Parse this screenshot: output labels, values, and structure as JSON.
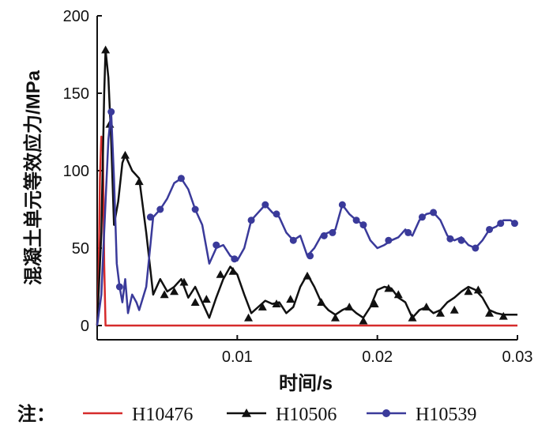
{
  "chart_data": {
    "type": "line",
    "xlabel": "时间/s",
    "ylabel": "混凝土单元等效应力/MPa",
    "xlim": [
      0,
      0.03
    ],
    "ylim": [
      0,
      200
    ],
    "x_ticks": [
      0.01,
      0.02,
      0.03
    ],
    "x_tick_labels": [
      "0.01",
      "0.02",
      "0.03"
    ],
    "y_ticks": [
      0,
      50,
      100,
      150,
      200
    ],
    "y_tick_labels": [
      "0",
      "50",
      "100",
      "150",
      "200"
    ],
    "grid": false,
    "legend_placement": "bottom",
    "legend_prefix": "注：",
    "series": [
      {
        "name": "H10476",
        "color": "#d62b2b",
        "marker": "none",
        "points": [
          [
            0,
            0
          ],
          [
            0.0001,
            30
          ],
          [
            0.0002,
            95
          ],
          [
            0.0003,
            122
          ],
          [
            0.0004,
            120
          ],
          [
            0.0005,
            40
          ],
          [
            0.0006,
            0
          ],
          [
            0.01,
            0
          ],
          [
            0.02,
            0
          ],
          [
            0.03,
            0
          ]
        ]
      },
      {
        "name": "H10506",
        "color": "#111111",
        "marker": "triangle",
        "points": [
          [
            0,
            0
          ],
          [
            0.0003,
            60
          ],
          [
            0.0005,
            150
          ],
          [
            0.0006,
            178
          ],
          [
            0.0008,
            160
          ],
          [
            0.001,
            120
          ],
          [
            0.0012,
            65
          ],
          [
            0.0015,
            80
          ],
          [
            0.0018,
            105
          ],
          [
            0.002,
            110
          ],
          [
            0.0025,
            100
          ],
          [
            0.003,
            95
          ],
          [
            0.0035,
            60
          ],
          [
            0.004,
            20
          ],
          [
            0.0045,
            30
          ],
          [
            0.005,
            22
          ],
          [
            0.0055,
            25
          ],
          [
            0.006,
            30
          ],
          [
            0.0065,
            18
          ],
          [
            0.007,
            25
          ],
          [
            0.0075,
            15
          ],
          [
            0.008,
            5
          ],
          [
            0.0085,
            18
          ],
          [
            0.009,
            30
          ],
          [
            0.0095,
            38
          ],
          [
            0.01,
            33
          ],
          [
            0.0105,
            20
          ],
          [
            0.011,
            8
          ],
          [
            0.0115,
            12
          ],
          [
            0.012,
            16
          ],
          [
            0.0125,
            14
          ],
          [
            0.013,
            15
          ],
          [
            0.0135,
            8
          ],
          [
            0.014,
            12
          ],
          [
            0.0145,
            25
          ],
          [
            0.015,
            33
          ],
          [
            0.0155,
            25
          ],
          [
            0.016,
            15
          ],
          [
            0.0165,
            10
          ],
          [
            0.017,
            7
          ],
          [
            0.0175,
            10
          ],
          [
            0.018,
            12
          ],
          [
            0.0185,
            8
          ],
          [
            0.019,
            5
          ],
          [
            0.0195,
            12
          ],
          [
            0.02,
            23
          ],
          [
            0.0205,
            25
          ],
          [
            0.021,
            24
          ],
          [
            0.0215,
            18
          ],
          [
            0.022,
            15
          ],
          [
            0.0225,
            5
          ],
          [
            0.023,
            10
          ],
          [
            0.0235,
            12
          ],
          [
            0.024,
            8
          ],
          [
            0.0245,
            10
          ],
          [
            0.025,
            15
          ],
          [
            0.0255,
            18
          ],
          [
            0.026,
            22
          ],
          [
            0.0265,
            25
          ],
          [
            0.027,
            23
          ],
          [
            0.0275,
            18
          ],
          [
            0.028,
            10
          ],
          [
            0.0285,
            8
          ],
          [
            0.029,
            7
          ],
          [
            0.0295,
            7
          ],
          [
            0.03,
            7
          ]
        ],
        "markers": [
          [
            0.0006,
            178
          ],
          [
            0.0009,
            130
          ],
          [
            0.002,
            110
          ],
          [
            0.003,
            93
          ],
          [
            0.0048,
            20
          ],
          [
            0.0055,
            22
          ],
          [
            0.0062,
            28
          ],
          [
            0.007,
            15
          ],
          [
            0.0078,
            17
          ],
          [
            0.0088,
            33
          ],
          [
            0.0097,
            35
          ],
          [
            0.0108,
            5
          ],
          [
            0.0118,
            12
          ],
          [
            0.0128,
            14
          ],
          [
            0.0138,
            17
          ],
          [
            0.015,
            32
          ],
          [
            0.016,
            15
          ],
          [
            0.017,
            5
          ],
          [
            0.018,
            12
          ],
          [
            0.019,
            3
          ],
          [
            0.0198,
            14
          ],
          [
            0.0208,
            24
          ],
          [
            0.0215,
            20
          ],
          [
            0.0225,
            5
          ],
          [
            0.0235,
            12
          ],
          [
            0.0245,
            8
          ],
          [
            0.0255,
            10
          ],
          [
            0.0265,
            22
          ],
          [
            0.0272,
            23
          ],
          [
            0.028,
            8
          ],
          [
            0.029,
            6
          ]
        ]
      },
      {
        "name": "H10539",
        "color": "#3a3a9a",
        "marker": "circle",
        "points": [
          [
            0,
            0
          ],
          [
            0.0003,
            20
          ],
          [
            0.0006,
            80
          ],
          [
            0.0008,
            120
          ],
          [
            0.001,
            138
          ],
          [
            0.0012,
            95
          ],
          [
            0.0014,
            40
          ],
          [
            0.0016,
            25
          ],
          [
            0.0018,
            15
          ],
          [
            0.002,
            30
          ],
          [
            0.0022,
            8
          ],
          [
            0.0025,
            20
          ],
          [
            0.0028,
            15
          ],
          [
            0.003,
            10
          ],
          [
            0.0035,
            25
          ],
          [
            0.004,
            70
          ],
          [
            0.0045,
            75
          ],
          [
            0.005,
            82
          ],
          [
            0.0055,
            92
          ],
          [
            0.006,
            95
          ],
          [
            0.0065,
            88
          ],
          [
            0.007,
            75
          ],
          [
            0.0075,
            65
          ],
          [
            0.008,
            40
          ],
          [
            0.0085,
            50
          ],
          [
            0.009,
            52
          ],
          [
            0.0095,
            45
          ],
          [
            0.01,
            42
          ],
          [
            0.0105,
            50
          ],
          [
            0.011,
            68
          ],
          [
            0.0115,
            73
          ],
          [
            0.012,
            78
          ],
          [
            0.0125,
            73
          ],
          [
            0.013,
            70
          ],
          [
            0.0135,
            60
          ],
          [
            0.014,
            55
          ],
          [
            0.0145,
            58
          ],
          [
            0.015,
            45
          ],
          [
            0.0155,
            50
          ],
          [
            0.016,
            58
          ],
          [
            0.0165,
            60
          ],
          [
            0.017,
            62
          ],
          [
            0.0175,
            78
          ],
          [
            0.018,
            72
          ],
          [
            0.0185,
            68
          ],
          [
            0.019,
            65
          ],
          [
            0.0195,
            55
          ],
          [
            0.02,
            50
          ],
          [
            0.0205,
            52
          ],
          [
            0.021,
            55
          ],
          [
            0.0215,
            57
          ],
          [
            0.022,
            62
          ],
          [
            0.0225,
            58
          ],
          [
            0.023,
            68
          ],
          [
            0.0235,
            72
          ],
          [
            0.024,
            73
          ],
          [
            0.0245,
            68
          ],
          [
            0.025,
            58
          ],
          [
            0.0255,
            55
          ],
          [
            0.026,
            57
          ],
          [
            0.0265,
            52
          ],
          [
            0.027,
            50
          ],
          [
            0.0275,
            55
          ],
          [
            0.028,
            62
          ],
          [
            0.0285,
            64
          ],
          [
            0.029,
            68
          ],
          [
            0.0295,
            68
          ],
          [
            0.03,
            65
          ]
        ],
        "markers": [
          [
            0.001,
            138
          ],
          [
            0.0016,
            25
          ],
          [
            0.0038,
            70
          ],
          [
            0.0045,
            75
          ],
          [
            0.006,
            95
          ],
          [
            0.007,
            75
          ],
          [
            0.0085,
            52
          ],
          [
            0.0098,
            43
          ],
          [
            0.011,
            68
          ],
          [
            0.012,
            78
          ],
          [
            0.0128,
            72
          ],
          [
            0.014,
            55
          ],
          [
            0.0152,
            45
          ],
          [
            0.0162,
            58
          ],
          [
            0.0168,
            60
          ],
          [
            0.0175,
            78
          ],
          [
            0.0185,
            68
          ],
          [
            0.019,
            65
          ],
          [
            0.0208,
            55
          ],
          [
            0.0222,
            60
          ],
          [
            0.0232,
            70
          ],
          [
            0.024,
            73
          ],
          [
            0.0252,
            56
          ],
          [
            0.026,
            55
          ],
          [
            0.027,
            50
          ],
          [
            0.028,
            62
          ],
          [
            0.0288,
            66
          ],
          [
            0.0298,
            66
          ]
        ]
      }
    ]
  }
}
